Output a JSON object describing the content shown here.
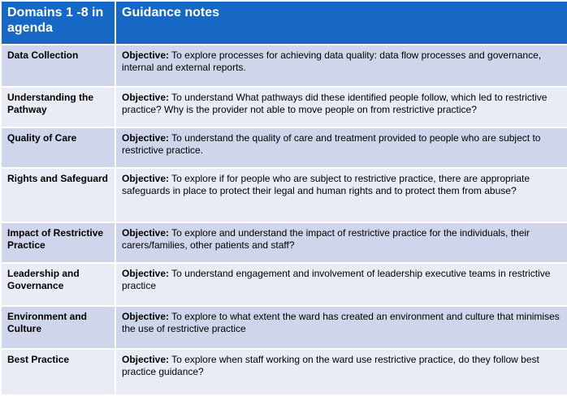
{
  "table": {
    "header": [
      "Domains 1 -8 in agenda",
      "Guidance notes"
    ],
    "rows": [
      {
        "domain": "Data Collection",
        "label": "Objective:",
        "text": "To explore processes for achieving data quality: data flow processes and governance, internal and external reports."
      },
      {
        "domain": "Understanding the Pathway",
        "label": "Objective:",
        "text": "To understand What pathways did these identified people follow, which led to restrictive practice? Why is the provider not able to move people on from restrictive practice?"
      },
      {
        "domain": "Quality of Care",
        "label": "Objective:",
        "text": "To understand the quality of care and treatment provided to people who are subject to restrictive practice."
      },
      {
        "domain": "Rights and Safeguard",
        "label": "Objective:",
        "text": "To explore if for people who are subject to restrictive practice, there are appropriate safeguards in place to protect their legal and human rights and to protect them from abuse?"
      },
      {
        "domain": "Impact of Restrictive Practice",
        "label": "Objective:",
        "text": "To explore and understand the impact of restrictive practice for the individuals, their carers/families, other patients and staff?"
      },
      {
        "domain": "Leadership and Governance",
        "label": "Objective:",
        "text": "To understand engagement and involvement of leadership executive teams in restrictive practice"
      },
      {
        "domain": "Environment and Culture",
        "label": "Objective:",
        "text": "To explore to what extent the ward has created an environment and culture that minimises the use of restrictive practice"
      },
      {
        "domain": "Best Practice",
        "label": "Objective:",
        "text": "To explore when staff working on the ward use restrictive practice, do they follow best practice guidance?"
      }
    ]
  }
}
